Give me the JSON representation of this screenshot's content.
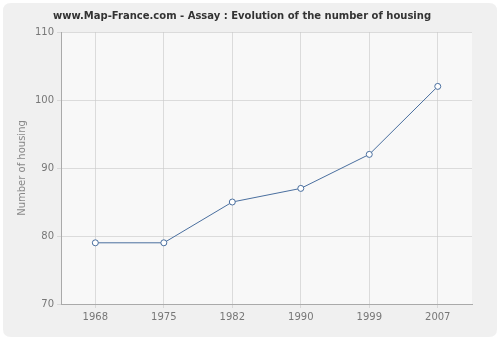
{
  "chart_data": {
    "type": "line",
    "title": "www.Map-France.com - Assay : Evolution of the number of housing",
    "y_label": "Number of housing",
    "categories": [
      "1968",
      "1975",
      "1982",
      "1990",
      "1999",
      "2007"
    ],
    "values": [
      79,
      79,
      85,
      87,
      92,
      102
    ],
    "color": "#4a6f9f",
    "marker": "circle",
    "ylim": [
      70,
      110
    ],
    "yticks": [
      70,
      80,
      90,
      100,
      110
    ],
    "grid": true
  }
}
